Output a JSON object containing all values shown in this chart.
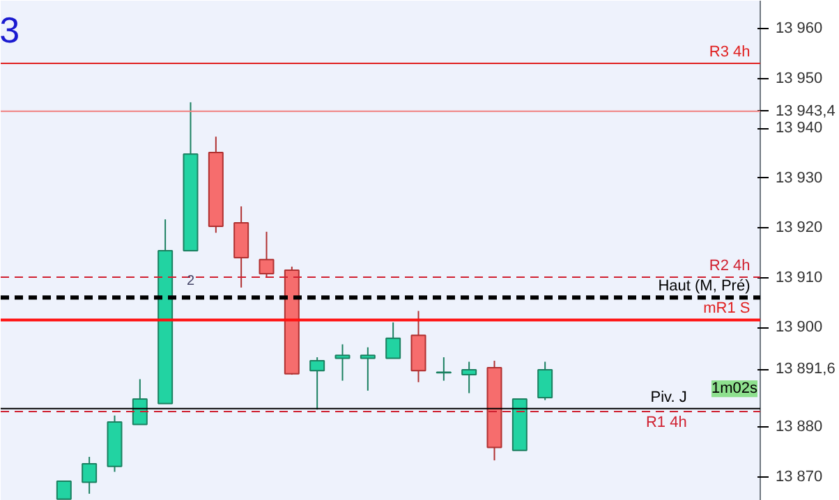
{
  "chart_data": {
    "type": "candlestick",
    "categories": [
      null,
      null,
      null,
      null,
      null,
      null,
      null,
      null,
      null,
      null,
      null,
      null,
      null,
      null,
      null,
      null,
      null,
      null,
      null,
      null,
      null,
      null,
      null,
      null,
      null,
      null,
      null,
      null,
      null,
      null
    ],
    "ohlc": [
      null,
      null,
      [
        13865.5,
        13869.1,
        13865.5,
        13869.1
      ],
      [
        13868.9,
        13874.0,
        13866.6,
        13872.6
      ],
      [
        13872.1,
        13882.3,
        13871.0,
        13881.0
      ],
      [
        13880.5,
        13889.6,
        13880.5,
        13885.6
      ],
      [
        13884.7,
        13921.7,
        13884.7,
        13915.4
      ],
      [
        13915.4,
        13945.2,
        13915.4,
        13934.8
      ],
      [
        13935.1,
        13938.3,
        13919.0,
        13920.3
      ],
      [
        13921.0,
        13924.3,
        13908.0,
        13914.0
      ],
      [
        13913.6,
        13919.2,
        13910.1,
        13910.8
      ],
      [
        13911.5,
        13912.2,
        13890.5,
        13890.7
      ],
      [
        13891.3,
        13894.0,
        13883.5,
        13893.3
      ],
      [
        13893.8,
        13896.6,
        13889.3,
        13894.4
      ],
      [
        13893.8,
        13896.0,
        13887.3,
        13894.4
      ],
      [
        13893.8,
        13901.0,
        13893.8,
        13897.8
      ],
      [
        13898.4,
        13903.3,
        13889.0,
        13891.3
      ],
      [
        13890.9,
        13894.0,
        13889.3,
        13891.0
      ],
      [
        13890.5,
        13893.1,
        13886.8,
        13891.5
      ],
      [
        13891.9,
        13893.3,
        13873.3,
        13875.9
      ],
      [
        13875.3,
        13885.6,
        13875.3,
        13885.6
      ],
      [
        13885.9,
        13893.1,
        13885.4,
        13891.5
      ],
      null,
      null,
      null,
      null,
      null,
      null,
      null,
      null
    ],
    "colors": [
      null,
      null,
      "#22d3a2",
      "#22d3a2",
      "#22d3a2",
      "#22d3a2",
      "#22d3a2",
      "#22d3a2",
      "#f66d6d",
      "#f66d6d",
      "#f66d6d",
      "#f66d6d",
      "#22d3a2",
      "#22d3a2",
      "#22d3a2",
      "#22d3a2",
      "#f66d6d",
      "#22d3a2",
      "#22d3a2",
      "#f66d6d",
      "#22d3a2",
      "#22d3a2",
      null,
      null,
      null,
      null,
      null,
      null,
      null,
      null
    ],
    "ylim": [
      13865.2,
      13965.6
    ],
    "yticks": [
      {
        "value": 13870,
        "label": "13 870"
      },
      {
        "value": 13880,
        "label": "13 880"
      },
      {
        "value": 13891.6,
        "label": "13 891,6"
      },
      {
        "value": 13900,
        "label": "13 900"
      },
      {
        "value": 13910,
        "label": "13 910"
      },
      {
        "value": 13920,
        "label": "13 920"
      },
      {
        "value": 13930,
        "label": "13 930"
      },
      {
        "value": 13940,
        "label": "13 940"
      },
      {
        "value": 13950,
        "label": "13 950"
      },
      {
        "value": 13960,
        "label": "13 960"
      }
    ],
    "tick_labels": "y",
    "grid": false,
    "ref_lines": [
      {
        "axis": "y",
        "value": 13953.0,
        "label": "R3 4h",
        "color": "#e02020",
        "line_style": "solid"
      },
      {
        "axis": "y",
        "value": 13943.4,
        "label": "13 943,4",
        "color": "#f08080",
        "line_style": "solid"
      },
      {
        "axis": "y",
        "value": 13910.1,
        "label": "R2 4h",
        "color": "#d02030",
        "line_style": "dashed"
      },
      {
        "axis": "y",
        "value": 13906.0,
        "label": "Haut (M, Pré)",
        "color": "#000000",
        "line_style": "dashed"
      },
      {
        "axis": "y",
        "value": 13901.5,
        "label": "mR1 S",
        "color": "#ff1010",
        "line_style": "solid"
      },
      {
        "axis": "y",
        "value": 13883.7,
        "label": "Piv. J",
        "color": "#000000",
        "line_style": "solid"
      },
      {
        "axis": "y",
        "value": 13883.1,
        "label": "R1 4h",
        "color": "#d02030",
        "line_style": "dashed"
      }
    ],
    "annotations": [
      "3",
      "1m02s",
      "2"
    ]
  }
}
